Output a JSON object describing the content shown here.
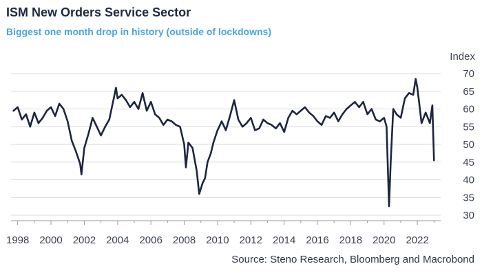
{
  "header": {
    "title": "ISM New Orders Service Sector",
    "subtitle": "Biggest one month drop in history (outside of lockdowns)"
  },
  "footer": {
    "source": "Source: Steno Research, Bloomberg and Macrobond"
  },
  "colors": {
    "line": "#1c2541",
    "subtitle": "#4aa3df",
    "grid": "#d9d9d9"
  },
  "chart_data": {
    "type": "line",
    "title": "ISM New Orders Service Sector",
    "subtitle": "Biggest one month drop in history (outside of lockdowns)",
    "xlabel": "",
    "ylabel": "Index",
    "ylim": [
      30,
      70
    ],
    "xlim": [
      1997.6,
      2023.4
    ],
    "y_axis_side": "right",
    "grid": "horizontal",
    "yticks": [
      30,
      35,
      40,
      45,
      50,
      55,
      60,
      65,
      70
    ],
    "xticks": [
      1998,
      2000,
      2002,
      2004,
      2006,
      2008,
      2010,
      2012,
      2014,
      2016,
      2018,
      2020,
      2022
    ],
    "series": [
      {
        "name": "ISM New Orders Service Sector",
        "x": [
          1997.75,
          1998.0,
          1998.25,
          1998.5,
          1998.75,
          1999.0,
          1999.25,
          1999.5,
          1999.75,
          2000.0,
          2000.25,
          2000.5,
          2000.75,
          2001.0,
          2001.25,
          2001.5,
          2001.75,
          2001.83,
          2002.0,
          2002.25,
          2002.5,
          2002.75,
          2003.0,
          2003.25,
          2003.5,
          2003.75,
          2003.9,
          2004.0,
          2004.25,
          2004.5,
          2004.75,
          2005.0,
          2005.25,
          2005.5,
          2005.75,
          2006.0,
          2006.25,
          2006.5,
          2006.75,
          2007.0,
          2007.25,
          2007.5,
          2007.75,
          2008.0,
          2008.1,
          2008.25,
          2008.5,
          2008.75,
          2008.9,
          2009.1,
          2009.25,
          2009.4,
          2009.6,
          2009.75,
          2010.0,
          2010.25,
          2010.5,
          2010.75,
          2011.0,
          2011.25,
          2011.5,
          2011.75,
          2012.0,
          2012.25,
          2012.5,
          2012.75,
          2013.0,
          2013.25,
          2013.5,
          2013.75,
          2014.0,
          2014.25,
          2014.5,
          2014.75,
          2015.0,
          2015.25,
          2015.5,
          2015.75,
          2016.0,
          2016.25,
          2016.5,
          2016.75,
          2017.0,
          2017.25,
          2017.5,
          2017.75,
          2018.0,
          2018.25,
          2018.5,
          2018.75,
          2019.0,
          2019.25,
          2019.5,
          2019.75,
          2020.0,
          2020.15,
          2020.3,
          2020.4,
          2020.55,
          2020.75,
          2021.0,
          2021.25,
          2021.5,
          2021.75,
          2021.9,
          2022.0,
          2022.1,
          2022.25,
          2022.5,
          2022.75,
          2022.9,
          2023.0
        ],
        "values": [
          59.5,
          60.5,
          57.0,
          58.5,
          55.0,
          59.0,
          56.0,
          57.5,
          59.5,
          60.5,
          58.0,
          61.5,
          60.0,
          56.5,
          51.0,
          48.0,
          44.5,
          41.5,
          49.0,
          53.0,
          57.5,
          55.0,
          52.5,
          55.0,
          57.0,
          62.5,
          66.0,
          63.0,
          64.0,
          62.5,
          60.5,
          62.0,
          60.0,
          64.5,
          59.5,
          62.0,
          58.5,
          57.5,
          55.5,
          57.0,
          56.5,
          55.5,
          55.0,
          50.0,
          43.5,
          50.5,
          49.0,
          42.5,
          36.0,
          39.0,
          40.5,
          45.0,
          47.5,
          50.5,
          54.0,
          56.5,
          54.0,
          58.0,
          62.5,
          57.0,
          55.0,
          56.0,
          57.5,
          54.0,
          54.5,
          57.0,
          56.0,
          55.5,
          54.5,
          56.0,
          53.5,
          57.5,
          59.5,
          58.5,
          59.5,
          60.5,
          59.0,
          58.0,
          56.5,
          55.5,
          58.0,
          57.5,
          59.0,
          56.5,
          58.5,
          60.0,
          61.0,
          62.0,
          60.5,
          62.0,
          58.5,
          60.0,
          57.0,
          56.5,
          57.5,
          55.0,
          32.5,
          45.0,
          60.0,
          58.5,
          57.5,
          63.0,
          64.5,
          64.0,
          68.5,
          66.0,
          62.0,
          56.0,
          59.0,
          56.0,
          61.0,
          45.5
        ]
      }
    ]
  }
}
